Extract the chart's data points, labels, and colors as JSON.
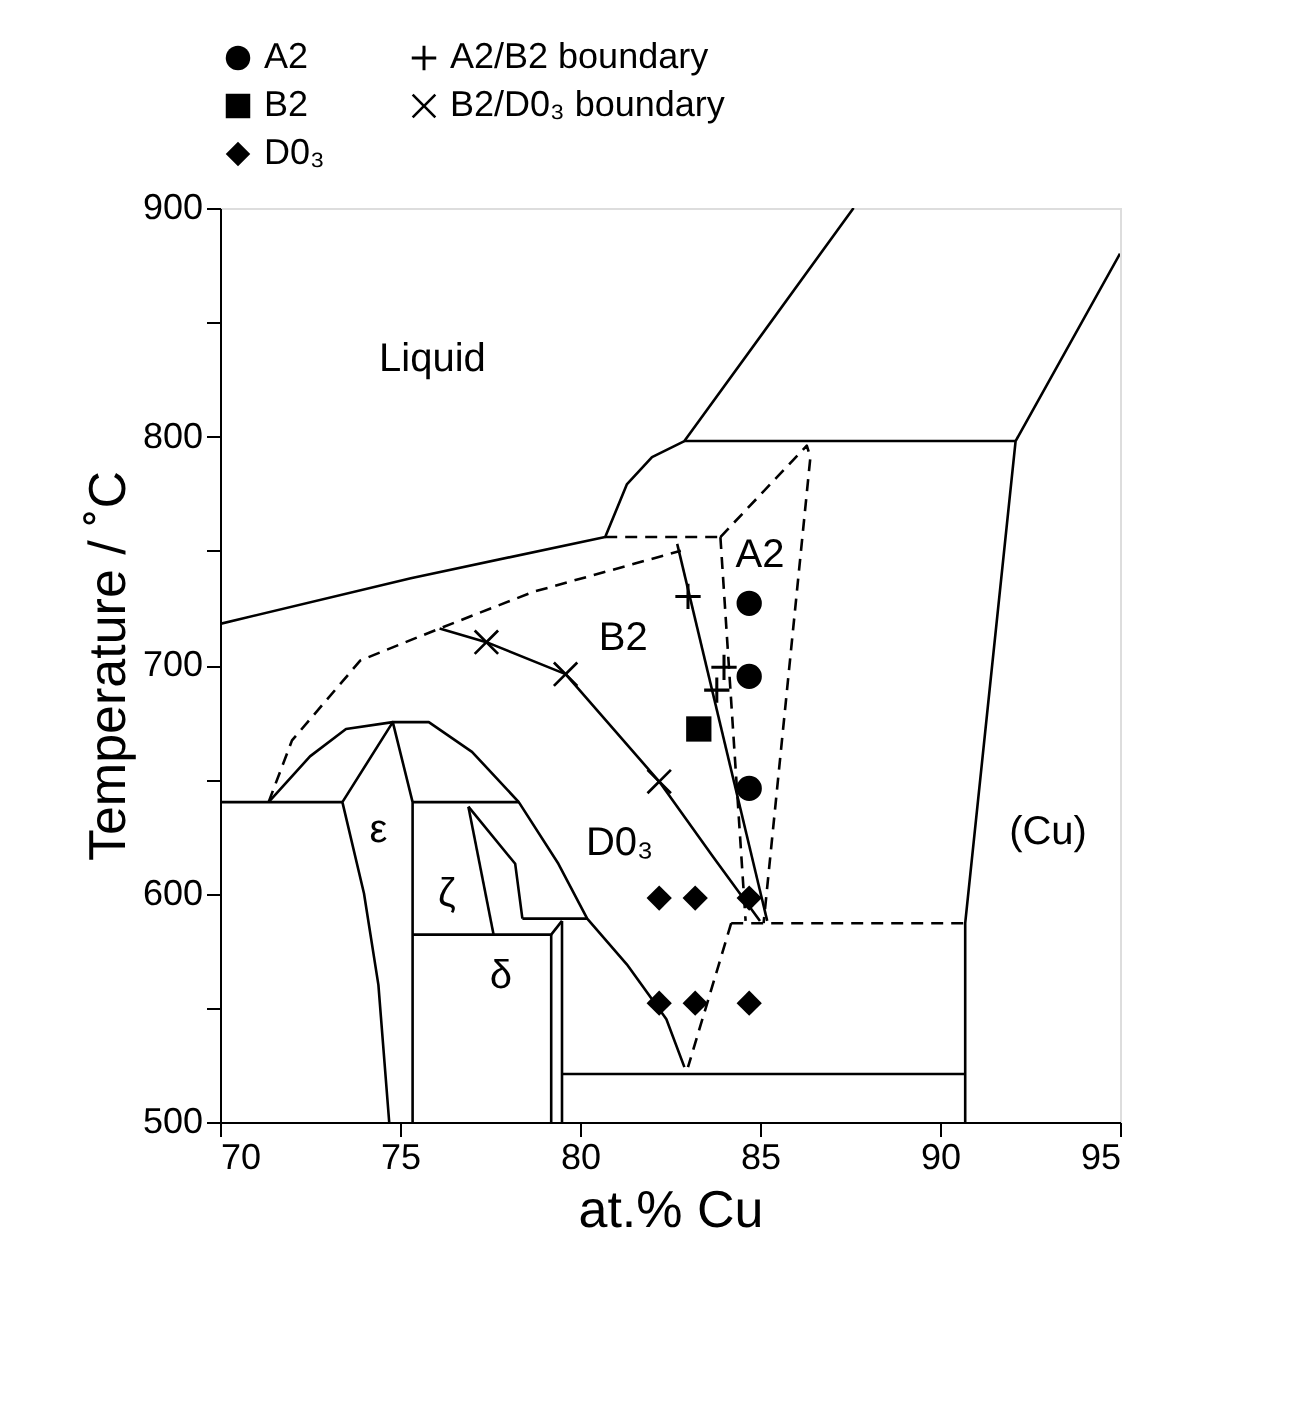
{
  "chart_data": {
    "type": "scatter",
    "xlabel": "at.% Cu",
    "ylabel": "Temperature / ˚C",
    "xlim": [
      70,
      95
    ],
    "ylim": [
      500,
      900
    ],
    "xticks": [
      70,
      75,
      80,
      85,
      90,
      95
    ],
    "yticks": [
      500,
      {
        "value": 550,
        "label": null
      },
      600,
      {
        "value": 650,
        "label": null
      },
      700,
      {
        "value": 750,
        "label": null
      },
      800,
      {
        "value": 850,
        "label": null
      },
      900
    ],
    "grid": false,
    "legend": "top",
    "series": [
      {
        "name": "A2",
        "color": "#000000",
        "marker": "circle",
        "x": [
          84.7,
          84.7,
          84.7
        ],
        "values": [
          727,
          695,
          646
        ]
      },
      {
        "name": "A2/B2 boundary",
        "color": "#000000",
        "marker": "cross",
        "x": [
          83.0,
          84.0,
          83.8
        ],
        "values": [
          730,
          699,
          689
        ]
      },
      {
        "name": "B2",
        "color": "#000000",
        "marker": "square",
        "x": [
          83.3
        ],
        "values": [
          672
        ]
      },
      {
        "name": "B2/D0₃ boundary",
        "color": "#000000",
        "marker": "x",
        "x": [
          77.4,
          79.6,
          82.2
        ],
        "values": [
          710,
          696,
          649
        ]
      },
      {
        "name": "D0₃",
        "color": "#000000",
        "marker": "diamond",
        "x": [
          82.2,
          83.2,
          84.7,
          82.2,
          83.2,
          84.7
        ],
        "values": [
          598,
          598,
          598,
          552,
          552,
          552
        ]
      },
      {
        "type": "line",
        "color": "#000000",
        "line_style": "solid",
        "x": [
          70,
          75.3,
          80.7,
          81.3,
          82.0,
          82.9,
          87.6
        ],
        "values": [
          718,
          738,
          756,
          779,
          791,
          798,
          900
        ]
      },
      {
        "type": "line",
        "color": "#000000",
        "line_style": "solid",
        "x": [
          82.9,
          92.1
        ],
        "values": [
          798,
          798
        ]
      },
      {
        "type": "line",
        "color": "#000000",
        "line_style": "solid",
        "x": [
          95,
          92.1,
          90.7,
          90.7
        ],
        "values": [
          880,
          798,
          587,
          500
        ]
      },
      {
        "type": "line",
        "color": "#000000",
        "line_style": "dashed",
        "x": [
          84.2,
          90.7
        ],
        "values": [
          587,
          587
        ]
      },
      {
        "type": "line",
        "color": "#000000",
        "line_style": "solid",
        "x": [
          79.5,
          90.7
        ],
        "values": [
          521,
          521
        ]
      },
      {
        "type": "line",
        "color": "#000000",
        "line_style": "solid",
        "x": [
          70,
          73.4
        ],
        "values": [
          640,
          640
        ]
      },
      {
        "type": "line",
        "color": "#000000",
        "line_style": "solid",
        "x": [
          71.35,
          72.5,
          73.5,
          74.8,
          75.8,
          77.0,
          78.3,
          79.4,
          80.2,
          81.3,
          82.4,
          82.9
        ],
        "values": [
          640,
          660,
          672,
          675,
          675,
          662,
          640,
          613,
          589,
          569,
          545,
          524
        ]
      },
      {
        "type": "line",
        "color": "#000000",
        "line_style": "solid",
        "x": [
          74.7,
          74.4,
          74.0,
          73.4,
          74.8,
          75.35,
          75.35
        ],
        "values": [
          500,
          560,
          600,
          640,
          675,
          640,
          500
        ]
      },
      {
        "type": "line",
        "color": "#000000",
        "line_style": "solid",
        "x": [
          75.35,
          78.3
        ],
        "values": [
          640,
          640
        ]
      },
      {
        "type": "line",
        "color": "#000000",
        "line_style": "solid",
        "x": [
          76.9,
          77.6
        ],
        "values": [
          638,
          582
        ]
      },
      {
        "type": "line",
        "color": "#000000",
        "line_style": "solid",
        "x": [
          76.9,
          78.2,
          78.4
        ],
        "values": [
          638,
          613,
          589
        ]
      },
      {
        "type": "line",
        "color": "#000000",
        "line_style": "solid",
        "x": [
          78.4,
          80.2
        ],
        "values": [
          589,
          589
        ]
      },
      {
        "type": "line",
        "color": "#000000",
        "line_style": "solid",
        "x": [
          75.35,
          79.2,
          79.5
        ],
        "values": [
          582,
          582,
          588
        ]
      },
      {
        "type": "line",
        "color": "#000000",
        "line_style": "solid",
        "x": [
          79.2,
          79.2
        ],
        "values": [
          582,
          500
        ]
      },
      {
        "type": "line",
        "color": "#000000",
        "line_style": "solid",
        "x": [
          79.5,
          79.5
        ],
        "values": [
          588,
          500
        ]
      },
      {
        "type": "line",
        "color": "#000000",
        "line_style": "dashed",
        "x": [
          71.35,
          72.0,
          73.9,
          76.1,
          78.7,
          82.8
        ],
        "values": [
          640,
          667,
          702,
          716,
          732,
          750
        ]
      },
      {
        "type": "line",
        "color": "#000000",
        "line_style": "dashed",
        "x": [
          80.7,
          83.9
        ],
        "values": [
          756,
          756
        ]
      },
      {
        "type": "line",
        "color": "#000000",
        "line_style": "dashed",
        "x": [
          83.9,
          86.3,
          86.4,
          85.1
        ],
        "values": [
          756,
          796,
          791,
          587
        ]
      },
      {
        "type": "line",
        "color": "#000000",
        "line_style": "dashed",
        "x": [
          83.9,
          84.6
        ],
        "values": [
          756,
          588
        ]
      },
      {
        "type": "line",
        "color": "#000000",
        "line_style": "dashed",
        "x": [
          84.2,
          83.0
        ],
        "values": [
          587,
          524
        ]
      },
      {
        "type": "line",
        "color": "#000000",
        "line_style": "solid",
        "x": [
          76.1,
          77.4,
          79.6,
          82.2,
          83.7,
          85.0
        ],
        "values": [
          716,
          710,
          696,
          649,
          616,
          588
        ]
      },
      {
        "type": "line",
        "color": "#000000",
        "line_style": "solid",
        "x": [
          82.7,
          85.2
        ],
        "values": [
          753,
          588
        ]
      }
    ],
    "annotations": [
      "Liquid",
      "A2",
      "B2",
      "D0₃",
      "ε",
      "ζ",
      "δ",
      "(Cu)"
    ]
  }
}
